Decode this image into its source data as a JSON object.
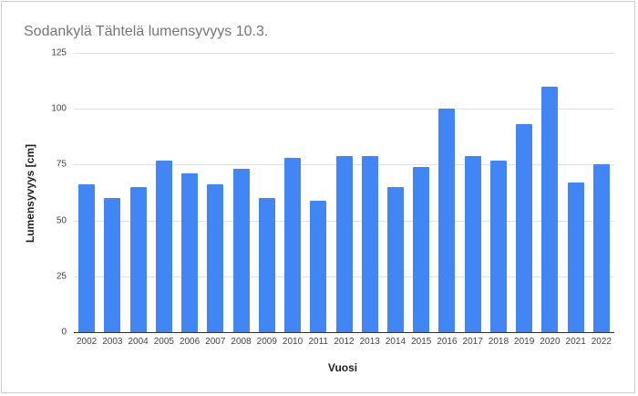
{
  "chart_data": {
    "type": "bar",
    "title": "Sodankylä Tähtelä lumensyvyys 10.3.",
    "xlabel": "Vuosi",
    "ylabel": "Lumensyvyys [cm]",
    "ylim": [
      0,
      125
    ],
    "yticks": [
      0,
      25,
      50,
      75,
      100,
      125
    ],
    "grid": true,
    "legend": "none",
    "bar_color": "#4285f4",
    "categories": [
      "2002",
      "2003",
      "2004",
      "2005",
      "2006",
      "2007",
      "2008",
      "2009",
      "2010",
      "2011",
      "2012",
      "2013",
      "2014",
      "2015",
      "2016",
      "2017",
      "2018",
      "2019",
      "2020",
      "2021",
      "2022"
    ],
    "values": [
      66,
      60,
      65,
      77,
      71,
      66,
      73,
      60,
      78,
      59,
      79,
      79,
      65,
      74,
      100,
      79,
      77,
      93,
      110,
      67,
      75
    ]
  }
}
